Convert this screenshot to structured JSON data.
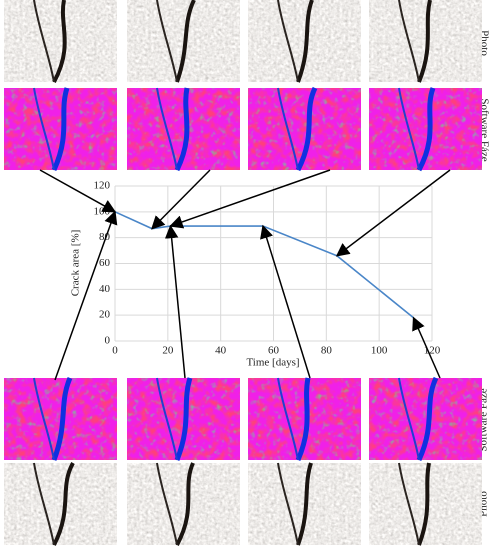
{
  "chart_data": {
    "type": "line",
    "x_label": "Time [days]",
    "y_label": "Crack area [%]",
    "x": [
      0,
      14,
      21,
      56,
      84,
      113
    ],
    "series": [
      {
        "color": "#4a86c8",
        "values": [
          100,
          87,
          89,
          89,
          66,
          18
        ]
      }
    ],
    "xlim": [
      0,
      120
    ],
    "xticks": [
      0,
      20,
      40,
      60,
      80,
      100,
      120
    ],
    "ylim": [
      0,
      120
    ],
    "yticks": [
      0,
      20,
      40,
      60,
      80,
      100,
      120
    ],
    "grid": true
  },
  "panel_labels": {
    "top_photo": "Photo",
    "top_software": "Software Fáze",
    "bottom_software": "Software Fáze",
    "bottom_photo": "Photo"
  }
}
